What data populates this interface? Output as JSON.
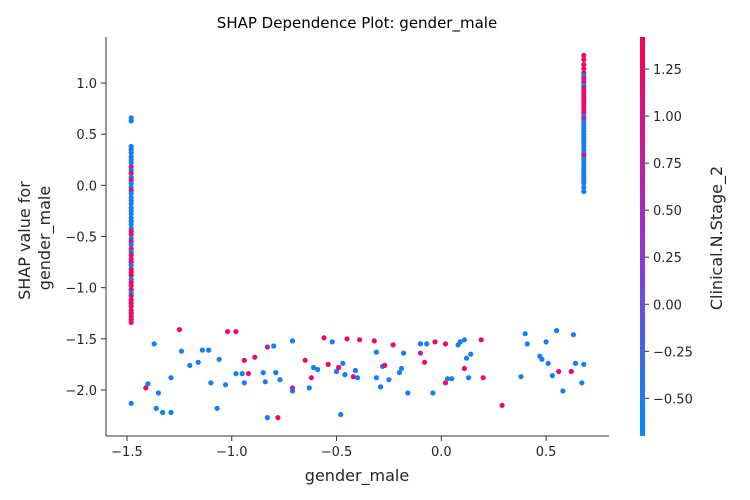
{
  "chart_data": {
    "type": "scatter",
    "title": "SHAP Dependence Plot: gender_male",
    "xlabel": "gender_male",
    "ylabel_lines": [
      "SHAP value for",
      "gender_male"
    ],
    "xlim": [
      -1.6,
      0.8
    ],
    "ylim": [
      -2.45,
      1.45
    ],
    "x_ticks": [
      -1.5,
      -1.0,
      -0.5,
      0.0,
      0.5
    ],
    "x_tick_labels": [
      "−1.5",
      "−1.0",
      "−0.5",
      "0.0",
      "0.5"
    ],
    "y_ticks": [
      -2.0,
      -1.5,
      -1.0,
      -0.5,
      0.0,
      0.5,
      1.0
    ],
    "y_tick_labels": [
      "−2.0",
      "−1.5",
      "−1.0",
      "−0.5",
      "0.0",
      "0.5",
      "1.0"
    ],
    "grid": false,
    "colorbar": {
      "label": "Clinical.N.Stage_2",
      "range": [
        -0.7,
        1.42
      ],
      "ticks": [
        -0.5,
        -0.25,
        0.0,
        0.25,
        0.5,
        0.75,
        1.0,
        1.25
      ],
      "tick_labels": [
        "−0.50",
        "−0.25",
        "0.00",
        "0.25",
        "0.50",
        "0.75",
        "1.00",
        "1.25"
      ],
      "low_color": "#008bfb",
      "mid_color": "#9b30d0",
      "high_color": "#ff0052"
    },
    "points": [
      {
        "x": -1.48,
        "y": 0.66,
        "c": -0.55
      },
      {
        "x": -1.48,
        "y": 0.63,
        "c": -0.55
      },
      {
        "x": -1.48,
        "y": 0.38,
        "c": -0.55
      },
      {
        "x": -1.48,
        "y": 0.35,
        "c": -0.55
      },
      {
        "x": -1.48,
        "y": 0.32,
        "c": -0.55
      },
      {
        "x": -1.48,
        "y": 0.28,
        "c": -0.55
      },
      {
        "x": -1.48,
        "y": 0.25,
        "c": -0.55
      },
      {
        "x": -1.48,
        "y": 0.22,
        "c": -0.55
      },
      {
        "x": -1.48,
        "y": 0.18,
        "c": 1.2
      },
      {
        "x": -1.48,
        "y": 0.15,
        "c": -0.55
      },
      {
        "x": -1.48,
        "y": 0.12,
        "c": 1.2
      },
      {
        "x": -1.48,
        "y": 0.08,
        "c": -0.55
      },
      {
        "x": -1.48,
        "y": 0.05,
        "c": 1.2
      },
      {
        "x": -1.48,
        "y": 0.02,
        "c": -0.55
      },
      {
        "x": -1.48,
        "y": -0.02,
        "c": -0.55
      },
      {
        "x": -1.48,
        "y": -0.05,
        "c": 1.2
      },
      {
        "x": -1.48,
        "y": -0.08,
        "c": -0.55
      },
      {
        "x": -1.48,
        "y": -0.12,
        "c": -0.55
      },
      {
        "x": -1.48,
        "y": -0.15,
        "c": -0.55
      },
      {
        "x": -1.48,
        "y": -0.18,
        "c": -0.55
      },
      {
        "x": -1.48,
        "y": -0.22,
        "c": -0.55
      },
      {
        "x": -1.48,
        "y": -0.25,
        "c": -0.55
      },
      {
        "x": -1.48,
        "y": -0.28,
        "c": -0.55
      },
      {
        "x": -1.48,
        "y": -0.32,
        "c": -0.55
      },
      {
        "x": -1.48,
        "y": -0.35,
        "c": -0.55
      },
      {
        "x": -1.48,
        "y": -0.38,
        "c": -0.55
      },
      {
        "x": -1.48,
        "y": -0.42,
        "c": -0.55
      },
      {
        "x": -1.48,
        "y": -0.45,
        "c": 1.2
      },
      {
        "x": -1.48,
        "y": -0.48,
        "c": 1.2
      },
      {
        "x": -1.48,
        "y": -0.52,
        "c": -0.55
      },
      {
        "x": -1.48,
        "y": -0.55,
        "c": 1.2
      },
      {
        "x": -1.48,
        "y": -0.58,
        "c": -0.55
      },
      {
        "x": -1.48,
        "y": -0.62,
        "c": 1.2
      },
      {
        "x": -1.48,
        "y": -0.65,
        "c": -0.55
      },
      {
        "x": -1.48,
        "y": -0.68,
        "c": 1.2
      },
      {
        "x": -1.48,
        "y": -0.72,
        "c": 1.2
      },
      {
        "x": -1.48,
        "y": -0.75,
        "c": 1.2
      },
      {
        "x": -1.48,
        "y": -0.78,
        "c": -0.55
      },
      {
        "x": -1.48,
        "y": -0.82,
        "c": 1.2
      },
      {
        "x": -1.48,
        "y": -0.85,
        "c": 1.2
      },
      {
        "x": -1.48,
        "y": -0.88,
        "c": 1.2
      },
      {
        "x": -1.48,
        "y": -0.92,
        "c": -0.55
      },
      {
        "x": -1.48,
        "y": -0.95,
        "c": 1.2
      },
      {
        "x": -1.48,
        "y": -0.98,
        "c": 1.2
      },
      {
        "x": -1.48,
        "y": -1.02,
        "c": 1.2
      },
      {
        "x": -1.48,
        "y": -1.05,
        "c": -0.55
      },
      {
        "x": -1.48,
        "y": -1.08,
        "c": 1.2
      },
      {
        "x": -1.48,
        "y": -1.12,
        "c": 1.2
      },
      {
        "x": -1.48,
        "y": -1.15,
        "c": 1.2
      },
      {
        "x": -1.48,
        "y": -1.18,
        "c": 1.2
      },
      {
        "x": -1.48,
        "y": -1.22,
        "c": 1.2
      },
      {
        "x": -1.48,
        "y": -1.25,
        "c": 1.2
      },
      {
        "x": -1.48,
        "y": -1.28,
        "c": 1.2
      },
      {
        "x": -1.48,
        "y": -1.31,
        "c": 1.2
      },
      {
        "x": -1.48,
        "y": -1.34,
        "c": 1.2
      },
      {
        "x": 0.68,
        "y": 1.27,
        "c": 1.2
      },
      {
        "x": 0.68,
        "y": 1.23,
        "c": 1.2
      },
      {
        "x": 0.68,
        "y": 1.18,
        "c": 1.2
      },
      {
        "x": 0.68,
        "y": 1.14,
        "c": 1.2
      },
      {
        "x": 0.68,
        "y": 1.1,
        "c": 1.2
      },
      {
        "x": 0.68,
        "y": 1.07,
        "c": -0.55
      },
      {
        "x": 0.68,
        "y": 1.04,
        "c": 1.2
      },
      {
        "x": 0.68,
        "y": 1.01,
        "c": 1.2
      },
      {
        "x": 0.68,
        "y": 0.98,
        "c": -0.55
      },
      {
        "x": 0.68,
        "y": 0.95,
        "c": 1.2
      },
      {
        "x": 0.68,
        "y": 0.92,
        "c": 1.2
      },
      {
        "x": 0.68,
        "y": 0.89,
        "c": 1.2
      },
      {
        "x": 0.68,
        "y": 0.86,
        "c": 1.2
      },
      {
        "x": 0.68,
        "y": 0.83,
        "c": 1.2
      },
      {
        "x": 0.68,
        "y": 0.8,
        "c": 1.2
      },
      {
        "x": 0.68,
        "y": 0.77,
        "c": 1.2
      },
      {
        "x": 0.68,
        "y": 0.74,
        "c": 1.2
      },
      {
        "x": 0.68,
        "y": 0.71,
        "c": 1.2
      },
      {
        "x": 0.68,
        "y": 0.68,
        "c": -0.55
      },
      {
        "x": 0.68,
        "y": 0.65,
        "c": 1.2
      },
      {
        "x": 0.68,
        "y": 0.62,
        "c": -0.55
      },
      {
        "x": 0.68,
        "y": 0.59,
        "c": -0.55
      },
      {
        "x": 0.68,
        "y": 0.56,
        "c": -0.55
      },
      {
        "x": 0.68,
        "y": 0.53,
        "c": -0.55
      },
      {
        "x": 0.68,
        "y": 0.5,
        "c": -0.55
      },
      {
        "x": 0.68,
        "y": 0.47,
        "c": -0.55
      },
      {
        "x": 0.68,
        "y": 0.44,
        "c": -0.55
      },
      {
        "x": 0.68,
        "y": 0.41,
        "c": -0.55
      },
      {
        "x": 0.68,
        "y": 0.38,
        "c": -0.55
      },
      {
        "x": 0.68,
        "y": 0.35,
        "c": -0.55
      },
      {
        "x": 0.68,
        "y": 0.32,
        "c": -0.55
      },
      {
        "x": 0.68,
        "y": 0.29,
        "c": 1.2
      },
      {
        "x": 0.68,
        "y": 0.26,
        "c": -0.55
      },
      {
        "x": 0.68,
        "y": 0.23,
        "c": -0.55
      },
      {
        "x": 0.68,
        "y": 0.2,
        "c": -0.55
      },
      {
        "x": 0.68,
        "y": 0.17,
        "c": -0.55
      },
      {
        "x": 0.68,
        "y": 0.14,
        "c": -0.55
      },
      {
        "x": 0.68,
        "y": 0.11,
        "c": -0.55
      },
      {
        "x": 0.68,
        "y": 0.08,
        "c": -0.55
      },
      {
        "x": 0.68,
        "y": 0.05,
        "c": -0.55
      },
      {
        "x": 0.68,
        "y": 0.02,
        "c": -0.55
      },
      {
        "x": 0.68,
        "y": -0.02,
        "c": -0.55
      },
      {
        "x": 0.68,
        "y": -0.06,
        "c": -0.55
      },
      {
        "x": -1.48,
        "y": -2.13,
        "c": -0.55
      },
      {
        "x": -1.41,
        "y": -1.98,
        "c": 1.2
      },
      {
        "x": -1.4,
        "y": -1.94,
        "c": -0.55
      },
      {
        "x": -1.37,
        "y": -1.55,
        "c": -0.55
      },
      {
        "x": -1.36,
        "y": -2.18,
        "c": -0.55
      },
      {
        "x": -1.35,
        "y": -2.03,
        "c": -0.55
      },
      {
        "x": -1.33,
        "y": -2.22,
        "c": -0.55
      },
      {
        "x": -1.29,
        "y": -2.22,
        "c": -0.55
      },
      {
        "x": -1.29,
        "y": -1.88,
        "c": -0.55
      },
      {
        "x": -1.25,
        "y": -1.41,
        "c": 1.2
      },
      {
        "x": -1.24,
        "y": -1.62,
        "c": -0.55
      },
      {
        "x": -1.2,
        "y": -1.76,
        "c": -0.55
      },
      {
        "x": -1.16,
        "y": -1.73,
        "c": -0.55
      },
      {
        "x": -1.14,
        "y": -1.61,
        "c": -0.55
      },
      {
        "x": -1.11,
        "y": -1.61,
        "c": -0.55
      },
      {
        "x": -1.1,
        "y": -1.93,
        "c": -0.55
      },
      {
        "x": -1.07,
        "y": -2.18,
        "c": -0.55
      },
      {
        "x": -1.06,
        "y": -1.7,
        "c": -0.55
      },
      {
        "x": -1.03,
        "y": -1.95,
        "c": -0.55
      },
      {
        "x": -1.02,
        "y": -1.43,
        "c": 1.2
      },
      {
        "x": -0.98,
        "y": -1.43,
        "c": 1.2
      },
      {
        "x": -0.98,
        "y": -1.84,
        "c": -0.55
      },
      {
        "x": -0.95,
        "y": -1.84,
        "c": -0.55
      },
      {
        "x": -0.94,
        "y": -1.93,
        "c": -0.55
      },
      {
        "x": -0.94,
        "y": -1.71,
        "c": 1.2
      },
      {
        "x": -0.92,
        "y": -1.84,
        "c": 1.2
      },
      {
        "x": -0.89,
        "y": -1.68,
        "c": 1.2
      },
      {
        "x": -0.85,
        "y": -1.83,
        "c": -0.55
      },
      {
        "x": -0.84,
        "y": -1.92,
        "c": -0.55
      },
      {
        "x": -0.83,
        "y": -1.58,
        "c": 0.55
      },
      {
        "x": -0.83,
        "y": -2.27,
        "c": -0.55
      },
      {
        "x": -0.8,
        "y": -1.57,
        "c": -0.55
      },
      {
        "x": -0.79,
        "y": -1.83,
        "c": -0.55
      },
      {
        "x": -0.78,
        "y": -2.27,
        "c": 1.2
      },
      {
        "x": -0.77,
        "y": -1.9,
        "c": -0.55
      },
      {
        "x": -0.71,
        "y": -1.52,
        "c": -0.55
      },
      {
        "x": -0.71,
        "y": -2.01,
        "c": -0.55
      },
      {
        "x": -0.71,
        "y": -1.98,
        "c": 0.55
      },
      {
        "x": -0.65,
        "y": -1.71,
        "c": 1.2
      },
      {
        "x": -0.63,
        "y": -1.98,
        "c": -0.55
      },
      {
        "x": -0.62,
        "y": -1.88,
        "c": 1.2
      },
      {
        "x": -0.61,
        "y": -1.78,
        "c": -0.55
      },
      {
        "x": -0.59,
        "y": -1.8,
        "c": -0.55
      },
      {
        "x": -0.56,
        "y": -1.49,
        "c": 1.2
      },
      {
        "x": -0.54,
        "y": -1.75,
        "c": 1.2
      },
      {
        "x": -0.52,
        "y": -1.53,
        "c": -0.55
      },
      {
        "x": -0.5,
        "y": -1.82,
        "c": -0.55
      },
      {
        "x": -0.49,
        "y": -1.78,
        "c": 1.2
      },
      {
        "x": -0.48,
        "y": -2.24,
        "c": -0.55
      },
      {
        "x": -0.47,
        "y": -1.74,
        "c": -0.55
      },
      {
        "x": -0.46,
        "y": -1.85,
        "c": -0.55
      },
      {
        "x": -0.45,
        "y": -1.5,
        "c": 1.2
      },
      {
        "x": -0.42,
        "y": -1.87,
        "c": 1.2
      },
      {
        "x": -0.41,
        "y": -1.81,
        "c": -0.55
      },
      {
        "x": -0.4,
        "y": -1.88,
        "c": -0.55
      },
      {
        "x": -0.39,
        "y": -1.51,
        "c": 1.2
      },
      {
        "x": -0.32,
        "y": -1.52,
        "c": 1.2
      },
      {
        "x": -0.31,
        "y": -1.63,
        "c": -0.55
      },
      {
        "x": -0.31,
        "y": -1.88,
        "c": -0.55
      },
      {
        "x": -0.29,
        "y": -1.97,
        "c": -0.55
      },
      {
        "x": -0.28,
        "y": -1.77,
        "c": -0.55
      },
      {
        "x": -0.27,
        "y": -1.76,
        "c": 1.2
      },
      {
        "x": -0.25,
        "y": -1.9,
        "c": -0.55
      },
      {
        "x": -0.23,
        "y": -1.56,
        "c": 1.2
      },
      {
        "x": -0.2,
        "y": -1.83,
        "c": -0.55
      },
      {
        "x": -0.19,
        "y": -1.79,
        "c": -0.55
      },
      {
        "x": -0.18,
        "y": -1.64,
        "c": -0.55
      },
      {
        "x": -0.16,
        "y": -2.03,
        "c": -0.55
      },
      {
        "x": -0.1,
        "y": -1.55,
        "c": -0.55
      },
      {
        "x": -0.1,
        "y": -1.64,
        "c": 0.55
      },
      {
        "x": -0.08,
        "y": -1.73,
        "c": 1.2
      },
      {
        "x": -0.07,
        "y": -1.55,
        "c": -0.55
      },
      {
        "x": -0.04,
        "y": -2.03,
        "c": -0.55
      },
      {
        "x": -0.03,
        "y": -1.53,
        "c": 1.2
      },
      {
        "x": 0.02,
        "y": -1.55,
        "c": 1.2
      },
      {
        "x": 0.02,
        "y": -1.93,
        "c": 1.2
      },
      {
        "x": 0.03,
        "y": -1.89,
        "c": -0.55
      },
      {
        "x": 0.05,
        "y": -1.89,
        "c": -0.55
      },
      {
        "x": 0.08,
        "y": -1.56,
        "c": -0.55
      },
      {
        "x": 0.09,
        "y": -1.53,
        "c": -0.55
      },
      {
        "x": 0.11,
        "y": -1.51,
        "c": -0.55
      },
      {
        "x": 0.11,
        "y": -1.79,
        "c": 1.2
      },
      {
        "x": 0.12,
        "y": -1.69,
        "c": -0.55
      },
      {
        "x": 0.13,
        "y": -1.88,
        "c": -0.55
      },
      {
        "x": 0.14,
        "y": -1.65,
        "c": -0.55
      },
      {
        "x": 0.19,
        "y": -1.51,
        "c": 1.2
      },
      {
        "x": 0.2,
        "y": -1.88,
        "c": 1.2
      },
      {
        "x": 0.29,
        "y": -2.15,
        "c": 1.2
      },
      {
        "x": 0.38,
        "y": -1.87,
        "c": -0.55
      },
      {
        "x": 0.4,
        "y": -1.45,
        "c": -0.55
      },
      {
        "x": 0.41,
        "y": -1.55,
        "c": -0.55
      },
      {
        "x": 0.47,
        "y": -1.67,
        "c": -0.55
      },
      {
        "x": 0.48,
        "y": -1.7,
        "c": -0.55
      },
      {
        "x": 0.5,
        "y": -1.53,
        "c": -0.55
      },
      {
        "x": 0.51,
        "y": -1.74,
        "c": -0.55
      },
      {
        "x": 0.53,
        "y": -1.86,
        "c": -0.55
      },
      {
        "x": 0.55,
        "y": -1.42,
        "c": -0.55
      },
      {
        "x": 0.56,
        "y": -1.82,
        "c": 1.2
      },
      {
        "x": 0.58,
        "y": -2.01,
        "c": -0.55
      },
      {
        "x": 0.62,
        "y": -1.82,
        "c": 1.2
      },
      {
        "x": 0.63,
        "y": -1.46,
        "c": -0.55
      },
      {
        "x": 0.64,
        "y": -1.74,
        "c": -0.55
      },
      {
        "x": 0.67,
        "y": -1.93,
        "c": -0.55
      },
      {
        "x": 0.68,
        "y": -1.75,
        "c": -0.55
      }
    ]
  }
}
